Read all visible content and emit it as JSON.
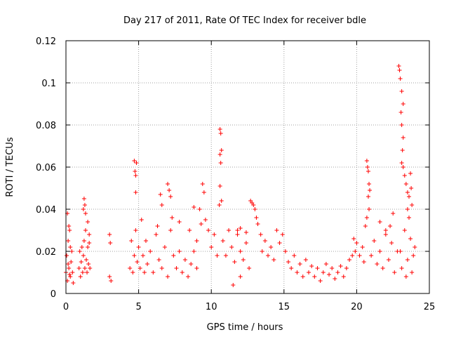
{
  "chart_data": {
    "type": "scatter",
    "title": "Day 217 of 2011, Rate Of TEC Index for receiver bdle",
    "xlabel": "GPS time / hours",
    "ylabel": "ROTI / TECUs",
    "xlim": [
      0,
      25
    ],
    "ylim": [
      0,
      0.12
    ],
    "xticks": [
      0,
      5,
      10,
      15,
      20,
      25
    ],
    "xtick_labels": [
      "0",
      "5",
      "10",
      "15",
      "20",
      "25"
    ],
    "yticks": [
      0,
      0.02,
      0.04,
      0.06,
      0.08,
      0.1,
      0.12
    ],
    "ytick_labels": [
      "0",
      "0.02",
      "0.04",
      "0.06",
      "0.08",
      "0.1",
      "0.12"
    ],
    "grid": true,
    "marker": "+",
    "color": "#ff0000",
    "series": [
      {
        "name": "ROTI",
        "points": [
          [
            0.0,
            0.01
          ],
          [
            0.05,
            0.018
          ],
          [
            0.1,
            0.006
          ],
          [
            0.15,
            0.025
          ],
          [
            0.2,
            0.012
          ],
          [
            0.25,
            0.03
          ],
          [
            0.3,
            0.008
          ],
          [
            0.35,
            0.015
          ],
          [
            0.4,
            0.02
          ],
          [
            0.45,
            0.01
          ],
          [
            0.5,
            0.005
          ],
          [
            0.1,
            0.038
          ],
          [
            0.2,
            0.032
          ],
          [
            0.3,
            0.022
          ],
          [
            0.15,
            0.014
          ],
          [
            0.25,
            0.009
          ],
          [
            0.9,
            0.012
          ],
          [
            0.95,
            0.02
          ],
          [
            1.0,
            0.008
          ],
          [
            1.05,
            0.015
          ],
          [
            1.1,
            0.022
          ],
          [
            1.15,
            0.01
          ],
          [
            1.2,
            0.018
          ],
          [
            1.25,
            0.025
          ],
          [
            1.3,
            0.012
          ],
          [
            1.35,
            0.03
          ],
          [
            1.4,
            0.016
          ],
          [
            1.45,
            0.01
          ],
          [
            1.5,
            0.022
          ],
          [
            1.55,
            0.014
          ],
          [
            1.6,
            0.028
          ],
          [
            1.65,
            0.012
          ],
          [
            1.2,
            0.04
          ],
          [
            1.25,
            0.045
          ],
          [
            1.3,
            0.042
          ],
          [
            1.35,
            0.038
          ],
          [
            1.5,
            0.034
          ],
          [
            1.6,
            0.024
          ],
          [
            3.0,
            0.028
          ],
          [
            3.05,
            0.024
          ],
          [
            3.1,
            0.006
          ],
          [
            3.0,
            0.008
          ],
          [
            4.4,
            0.012
          ],
          [
            4.5,
            0.025
          ],
          [
            4.6,
            0.01
          ],
          [
            4.7,
            0.018
          ],
          [
            4.8,
            0.03
          ],
          [
            4.9,
            0.015
          ],
          [
            5.0,
            0.022
          ],
          [
            5.1,
            0.012
          ],
          [
            5.2,
            0.035
          ],
          [
            5.3,
            0.018
          ],
          [
            5.4,
            0.01
          ],
          [
            5.5,
            0.025
          ],
          [
            4.7,
            0.063
          ],
          [
            4.75,
            0.058
          ],
          [
            4.8,
            0.056
          ],
          [
            4.8,
            0.048
          ],
          [
            4.85,
            0.062
          ],
          [
            5.6,
            0.014
          ],
          [
            5.8,
            0.02
          ],
          [
            6.0,
            0.01
          ],
          [
            6.2,
            0.028
          ],
          [
            6.4,
            0.016
          ],
          [
            6.6,
            0.012
          ],
          [
            6.8,
            0.022
          ],
          [
            7.0,
            0.008
          ],
          [
            7.2,
            0.03
          ],
          [
            7.4,
            0.018
          ],
          [
            7.6,
            0.012
          ],
          [
            7.8,
            0.02
          ],
          [
            8.0,
            0.01
          ],
          [
            8.2,
            0.016
          ],
          [
            8.4,
            0.008
          ],
          [
            8.6,
            0.014
          ],
          [
            8.8,
            0.02
          ],
          [
            9.0,
            0.012
          ],
          [
            6.5,
            0.047
          ],
          [
            6.6,
            0.042
          ],
          [
            7.0,
            0.052
          ],
          [
            7.1,
            0.049
          ],
          [
            7.2,
            0.046
          ],
          [
            7.3,
            0.036
          ],
          [
            6.3,
            0.032
          ],
          [
            7.8,
            0.034
          ],
          [
            8.5,
            0.03
          ],
          [
            8.8,
            0.041
          ],
          [
            9.0,
            0.025
          ],
          [
            9.2,
            0.04
          ],
          [
            9.3,
            0.033
          ],
          [
            9.4,
            0.052
          ],
          [
            9.5,
            0.048
          ],
          [
            9.6,
            0.035
          ],
          [
            9.8,
            0.03
          ],
          [
            10.0,
            0.022
          ],
          [
            10.2,
            0.028
          ],
          [
            10.4,
            0.018
          ],
          [
            10.6,
            0.078
          ],
          [
            10.65,
            0.076
          ],
          [
            10.7,
            0.068
          ],
          [
            10.6,
            0.066
          ],
          [
            10.65,
            0.062
          ],
          [
            10.6,
            0.051
          ],
          [
            10.7,
            0.044
          ],
          [
            10.55,
            0.042
          ],
          [
            10.8,
            0.025
          ],
          [
            11.0,
            0.018
          ],
          [
            11.2,
            0.03
          ],
          [
            11.4,
            0.022
          ],
          [
            11.6,
            0.015
          ],
          [
            11.8,
            0.028
          ],
          [
            12.0,
            0.02
          ],
          [
            12.2,
            0.016
          ],
          [
            12.4,
            0.024
          ],
          [
            12.6,
            0.012
          ],
          [
            11.8,
            0.03
          ],
          [
            12.0,
            0.031
          ],
          [
            12.4,
            0.029
          ],
          [
            12.0,
            0.008
          ],
          [
            11.5,
            0.004
          ],
          [
            12.7,
            0.044
          ],
          [
            12.8,
            0.043
          ],
          [
            12.9,
            0.042
          ],
          [
            13.0,
            0.04
          ],
          [
            13.1,
            0.036
          ],
          [
            13.2,
            0.033
          ],
          [
            13.4,
            0.028
          ],
          [
            13.5,
            0.02
          ],
          [
            13.7,
            0.025
          ],
          [
            13.9,
            0.018
          ],
          [
            14.1,
            0.022
          ],
          [
            14.3,
            0.016
          ],
          [
            14.5,
            0.03
          ],
          [
            14.7,
            0.024
          ],
          [
            14.9,
            0.028
          ],
          [
            15.1,
            0.02
          ],
          [
            15.3,
            0.015
          ],
          [
            15.5,
            0.012
          ],
          [
            15.7,
            0.018
          ],
          [
            15.9,
            0.01
          ],
          [
            16.1,
            0.014
          ],
          [
            16.3,
            0.008
          ],
          [
            16.5,
            0.016
          ],
          [
            16.7,
            0.01
          ],
          [
            16.9,
            0.013
          ],
          [
            17.1,
            0.008
          ],
          [
            17.3,
            0.012
          ],
          [
            17.5,
            0.006
          ],
          [
            17.7,
            0.01
          ],
          [
            17.9,
            0.014
          ],
          [
            18.1,
            0.009
          ],
          [
            18.3,
            0.012
          ],
          [
            18.5,
            0.007
          ],
          [
            18.7,
            0.01
          ],
          [
            18.9,
            0.013
          ],
          [
            19.1,
            0.008
          ],
          [
            19.3,
            0.012
          ],
          [
            19.5,
            0.016
          ],
          [
            19.7,
            0.018
          ],
          [
            19.9,
            0.02
          ],
          [
            19.8,
            0.026
          ],
          [
            20.0,
            0.024
          ],
          [
            20.2,
            0.018
          ],
          [
            20.4,
            0.022
          ],
          [
            20.5,
            0.015
          ],
          [
            20.7,
            0.063
          ],
          [
            20.75,
            0.06
          ],
          [
            20.8,
            0.058
          ],
          [
            20.85,
            0.052
          ],
          [
            20.9,
            0.049
          ],
          [
            20.8,
            0.046
          ],
          [
            20.85,
            0.04
          ],
          [
            20.7,
            0.036
          ],
          [
            20.6,
            0.032
          ],
          [
            21.0,
            0.018
          ],
          [
            21.2,
            0.025
          ],
          [
            21.4,
            0.014
          ],
          [
            21.6,
            0.02
          ],
          [
            21.8,
            0.012
          ],
          [
            22.0,
            0.028
          ],
          [
            22.2,
            0.016
          ],
          [
            22.4,
            0.024
          ],
          [
            22.6,
            0.01
          ],
          [
            22.8,
            0.02
          ],
          [
            21.6,
            0.034
          ],
          [
            22.0,
            0.03
          ],
          [
            22.5,
            0.038
          ],
          [
            22.3,
            0.032
          ],
          [
            22.9,
            0.108
          ],
          [
            22.95,
            0.106
          ],
          [
            23.0,
            0.102
          ],
          [
            23.1,
            0.096
          ],
          [
            23.2,
            0.09
          ],
          [
            23.05,
            0.086
          ],
          [
            23.1,
            0.08
          ],
          [
            23.2,
            0.074
          ],
          [
            23.15,
            0.068
          ],
          [
            23.1,
            0.062
          ],
          [
            23.2,
            0.06
          ],
          [
            23.3,
            0.056
          ],
          [
            23.4,
            0.052
          ],
          [
            23.5,
            0.048
          ],
          [
            23.6,
            0.046
          ],
          [
            23.7,
            0.057
          ],
          [
            23.75,
            0.05
          ],
          [
            23.8,
            0.042
          ],
          [
            23.5,
            0.04
          ],
          [
            23.6,
            0.036
          ],
          [
            23.0,
            0.02
          ],
          [
            23.1,
            0.012
          ],
          [
            23.3,
            0.03
          ],
          [
            23.5,
            0.016
          ],
          [
            23.7,
            0.026
          ],
          [
            23.9,
            0.018
          ],
          [
            24.0,
            0.022
          ],
          [
            23.8,
            0.01
          ],
          [
            23.4,
            0.008
          ]
        ]
      }
    ]
  }
}
